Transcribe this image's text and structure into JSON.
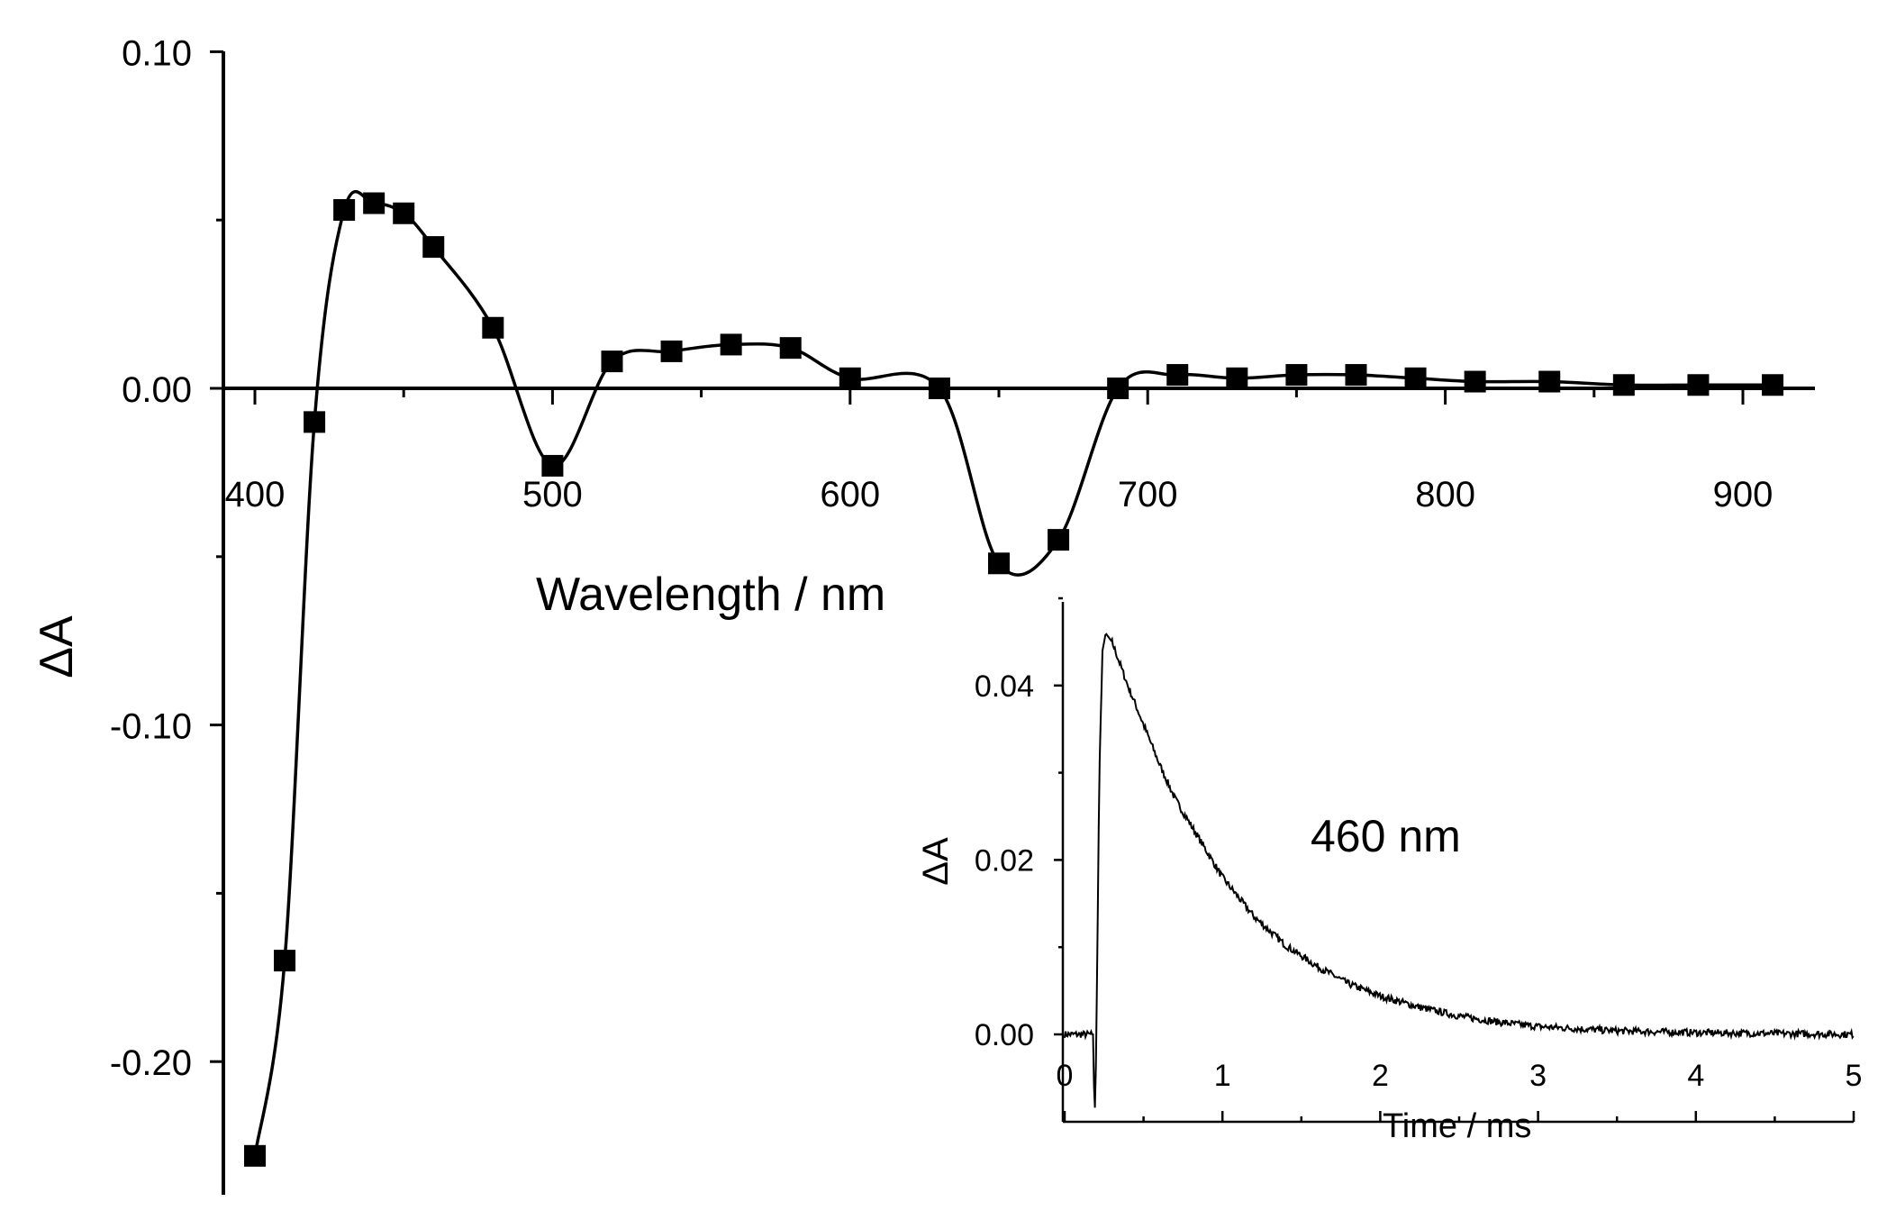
{
  "chart_data": [
    {
      "type": "line",
      "xlabel": "Wavelength / nm",
      "ylabel": "ΔA",
      "xlim": [
        400,
        920
      ],
      "ylim": [
        -0.24,
        0.1
      ],
      "xticks": [
        "400",
        "500",
        "600",
        "700",
        "800",
        "900"
      ],
      "yticks": [
        "0.10",
        "0.00",
        "-0.10",
        "-0.20"
      ],
      "markers": "filled-square",
      "series": [
        {
          "x": [
            400,
            410,
            420,
            430,
            440,
            450,
            460,
            480,
            500,
            520,
            540,
            560,
            580,
            600,
            630,
            650,
            670,
            690,
            710,
            730,
            750,
            770,
            790,
            810,
            835,
            860,
            885,
            910
          ],
          "y": [
            -0.228,
            -0.17,
            -0.01,
            0.053,
            0.055,
            0.052,
            0.042,
            0.018,
            -0.023,
            0.008,
            0.011,
            0.013,
            0.012,
            0.003,
            0.0,
            -0.052,
            -0.045,
            0.0,
            0.004,
            0.003,
            0.004,
            0.004,
            0.003,
            0.002,
            0.002,
            0.001,
            0.001,
            0.001
          ]
        }
      ]
    },
    {
      "type": "line",
      "annotation": "460 nm",
      "xlabel": "Time / ms",
      "ylabel": "ΔA",
      "xlim": [
        0,
        5
      ],
      "ylim": [
        -0.01,
        0.05
      ],
      "xticks": [
        "0",
        "1",
        "2",
        "3",
        "4",
        "5"
      ],
      "yticks": [
        "0.00",
        "0.02",
        "0.04"
      ],
      "series": [
        {
          "x": [
            0.0,
            0.1,
            0.18,
            0.19,
            0.2,
            0.22,
            0.24,
            0.26,
            0.3,
            0.4,
            0.5,
            0.6,
            0.7,
            0.8,
            1.0,
            1.2,
            1.4,
            1.6,
            1.8,
            2.0,
            2.25,
            2.5,
            2.75,
            3.0,
            3.5,
            4.0,
            4.5,
            5.0
          ],
          "y": [
            0.0,
            0.0,
            0.0,
            -0.01,
            -0.002,
            0.03,
            0.044,
            0.046,
            0.045,
            0.04,
            0.0355,
            0.031,
            0.027,
            0.024,
            0.018,
            0.0135,
            0.0102,
            0.0078,
            0.0058,
            0.0044,
            0.0031,
            0.0021,
            0.0014,
            0.0009,
            0.0004,
            0.0002,
            0.0001,
            0.0
          ]
        }
      ]
    }
  ]
}
